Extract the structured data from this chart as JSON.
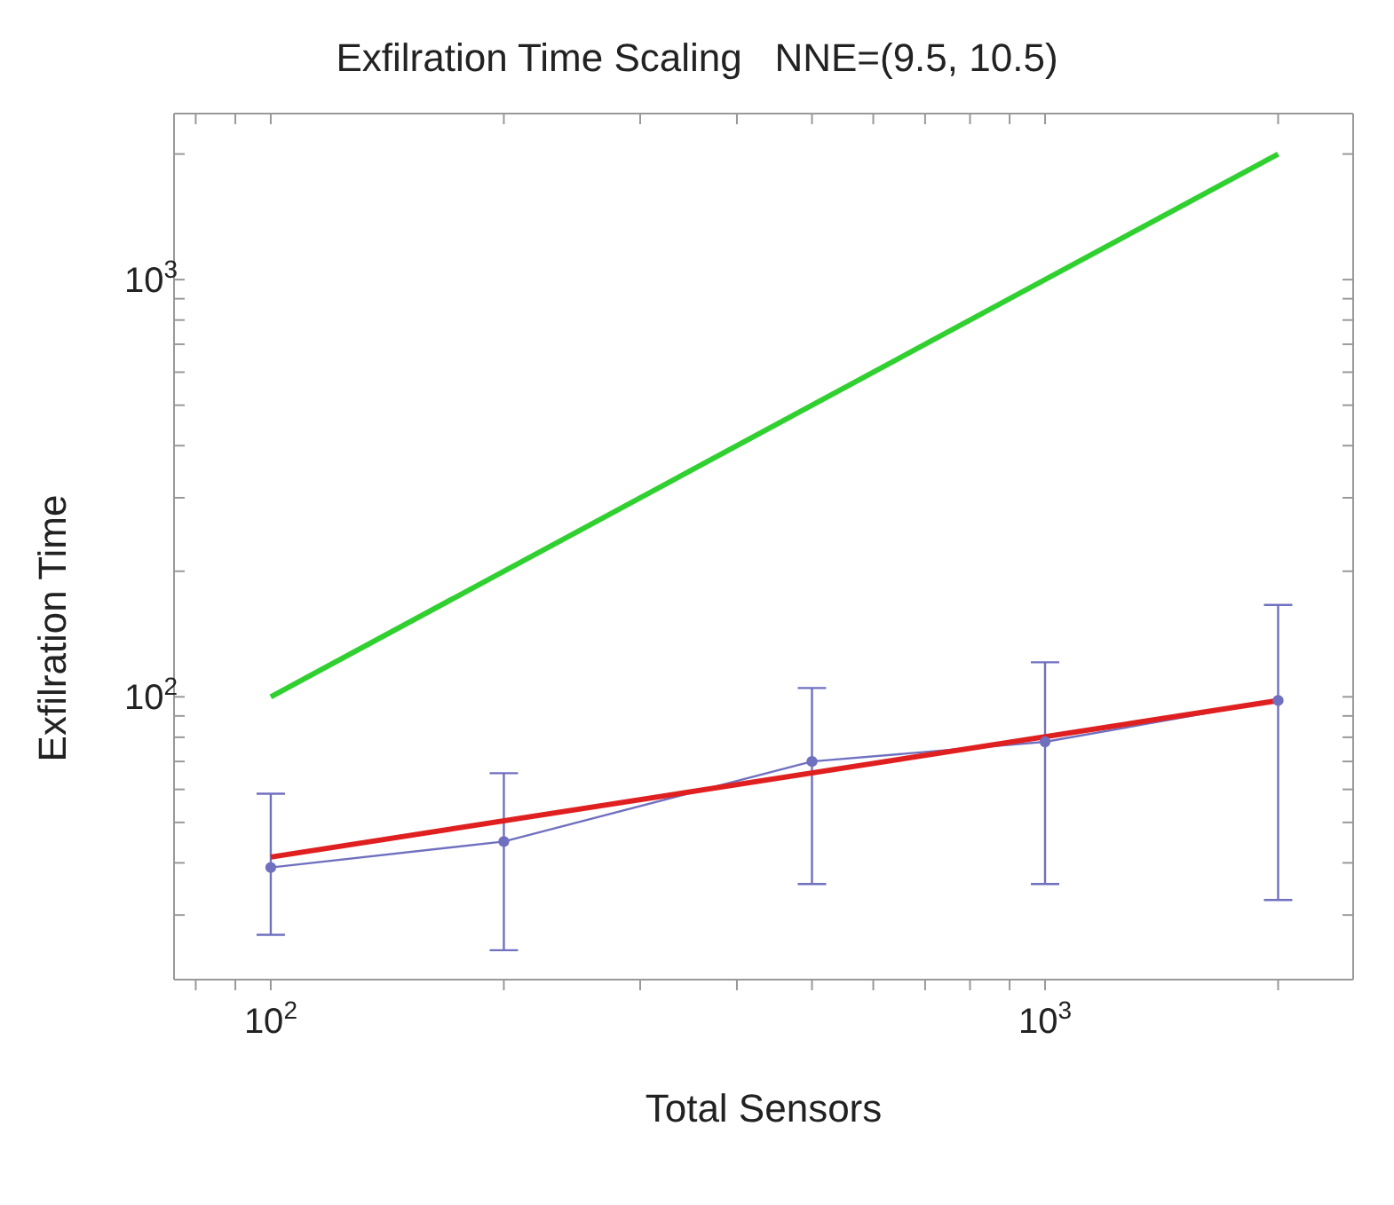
{
  "chart_data": {
    "type": "line",
    "title": "Exfilration Time Scaling   NNE=(9.5, 10.5)",
    "xlabel": "Total Sensors",
    "ylabel": "Exfilration Time",
    "log": "xy",
    "line_style": "solid",
    "xlim": [
      75,
      2500
    ],
    "ylim": [
      21,
      2500
    ],
    "xticks": [
      {
        "value": 80,
        "label": null
      },
      {
        "value": 90,
        "label": null
      },
      {
        "value": 100,
        "label": "10$^{2}$"
      },
      {
        "value": 200,
        "label": null
      },
      {
        "value": 300,
        "label": null
      },
      {
        "value": 400,
        "label": null
      },
      {
        "value": 500,
        "label": null
      },
      {
        "value": 600,
        "label": null
      },
      {
        "value": 700,
        "label": null
      },
      {
        "value": 800,
        "label": null
      },
      {
        "value": 900,
        "label": null
      },
      {
        "value": 1000,
        "label": "10$^{3}$"
      },
      {
        "value": 2000,
        "label": null
      }
    ],
    "yticks": [
      {
        "value": 30,
        "label": null
      },
      {
        "value": 40,
        "label": null
      },
      {
        "value": 50,
        "label": null
      },
      {
        "value": 60,
        "label": null
      },
      {
        "value": 70,
        "label": null
      },
      {
        "value": 80,
        "label": null
      },
      {
        "value": 90,
        "label": null
      },
      {
        "value": 100,
        "label": "10$^{2}$"
      },
      {
        "value": 200,
        "label": null
      },
      {
        "value": 300,
        "label": null
      },
      {
        "value": 400,
        "label": null
      },
      {
        "value": 500,
        "label": null
      },
      {
        "value": 600,
        "label": null
      },
      {
        "value": 700,
        "label": null
      },
      {
        "value": 800,
        "label": null
      },
      {
        "value": 900,
        "label": null
      },
      {
        "value": 1000,
        "label": "10$^{3}$"
      },
      {
        "value": 2000,
        "label": null
      }
    ],
    "series": [
      {
        "color": "#7070c0",
        "marker": "circle",
        "x": [
          100,
          200,
          500,
          1000,
          2000
        ],
        "values": [
          39,
          45,
          70,
          78,
          98
        ],
        "errors": [
          [
            26.9,
            58.6
          ],
          [
            24.7,
            65.6
          ],
          [
            35.6,
            105
          ],
          [
            35.6,
            121
          ],
          [
            32.6,
            166
          ]
        ]
      },
      {
        "color": "#e02020",
        "marker": "none",
        "x": [
          100,
          2000
        ],
        "values": [
          41.3,
          98
        ]
      },
      {
        "color": "#30d030",
        "marker": "none",
        "x": [
          100,
          2000
        ],
        "values": [
          100,
          2000
        ]
      }
    ]
  }
}
